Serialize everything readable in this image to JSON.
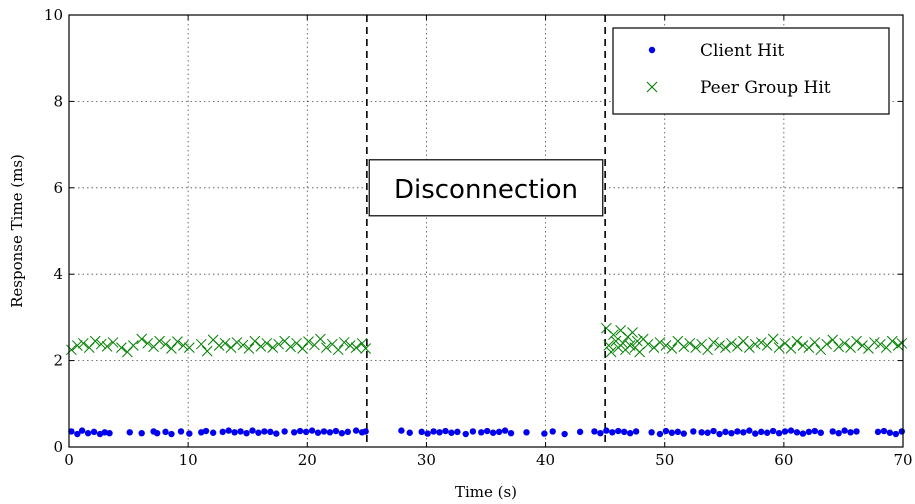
{
  "chart_data": {
    "type": "scatter",
    "xlabel": "Time (s)",
    "ylabel": "Response Time (ms)",
    "xlim": [
      0,
      70
    ],
    "ylim": [
      0,
      10
    ],
    "xticks": [
      0,
      10,
      20,
      30,
      40,
      50,
      60,
      70
    ],
    "yticks": [
      0,
      2,
      4,
      6,
      8,
      10
    ],
    "grid": true,
    "legend_position": "top-right",
    "vertical_lines": [
      25,
      45
    ],
    "annotation": {
      "text": "Disconnection",
      "x": 35,
      "y": 6
    },
    "series": [
      {
        "name": "Client Hit",
        "marker": "dot",
        "color": "#0000ee",
        "x": [
          0.2,
          0.7,
          1.1,
          1.6,
          2.1,
          2.6,
          3.0,
          3.4,
          5.1,
          6.1,
          7.1,
          7.4,
          8.1,
          8.6,
          9.4,
          10.1,
          11.1,
          11.5,
          12.1,
          12.9,
          13.4,
          13.9,
          14.4,
          14.9,
          15.4,
          15.9,
          16.4,
          16.9,
          17.4,
          18.1,
          18.9,
          19.4,
          19.9,
          20.4,
          20.9,
          21.4,
          21.9,
          22.4,
          22.9,
          23.4,
          24.1,
          24.6,
          24.9,
          27.9,
          28.6,
          29.6,
          30.1,
          30.6,
          31.1,
          31.6,
          32.1,
          32.6,
          33.3,
          33.9,
          34.6,
          35.1,
          35.6,
          36.1,
          36.6,
          37.1,
          38.4,
          39.9,
          40.6,
          41.6,
          42.9,
          44.1,
          44.6,
          45.1,
          45.6,
          46.1,
          46.6,
          47.1,
          47.6,
          48.9,
          49.6,
          50.1,
          50.6,
          51.1,
          51.6,
          52.4,
          53.1,
          53.6,
          54.1,
          54.6,
          55.1,
          55.6,
          56.1,
          56.6,
          57.1,
          57.6,
          58.1,
          58.6,
          59.1,
          59.6,
          60.1,
          60.6,
          61.1,
          61.6,
          62.1,
          62.6,
          63.1,
          64.1,
          64.6,
          65.1,
          65.6,
          66.1,
          67.9,
          68.4,
          68.9,
          69.4,
          69.9
        ],
        "y": [
          0.36,
          0.3,
          0.38,
          0.32,
          0.35,
          0.3,
          0.34,
          0.32,
          0.34,
          0.32,
          0.36,
          0.32,
          0.35,
          0.3,
          0.36,
          0.31,
          0.34,
          0.37,
          0.33,
          0.35,
          0.38,
          0.34,
          0.36,
          0.32,
          0.38,
          0.33,
          0.36,
          0.35,
          0.31,
          0.36,
          0.34,
          0.37,
          0.35,
          0.38,
          0.33,
          0.36,
          0.34,
          0.37,
          0.32,
          0.35,
          0.38,
          0.34,
          0.36,
          0.38,
          0.33,
          0.35,
          0.31,
          0.36,
          0.34,
          0.37,
          0.33,
          0.35,
          0.3,
          0.36,
          0.34,
          0.37,
          0.33,
          0.35,
          0.38,
          0.32,
          0.34,
          0.31,
          0.36,
          0.3,
          0.35,
          0.36,
          0.32,
          0.38,
          0.34,
          0.37,
          0.35,
          0.32,
          0.36,
          0.34,
          0.3,
          0.37,
          0.33,
          0.35,
          0.31,
          0.36,
          0.34,
          0.33,
          0.37,
          0.3,
          0.35,
          0.32,
          0.36,
          0.34,
          0.38,
          0.31,
          0.35,
          0.33,
          0.37,
          0.32,
          0.36,
          0.38,
          0.34,
          0.31,
          0.35,
          0.37,
          0.33,
          0.36,
          0.32,
          0.38,
          0.34,
          0.36,
          0.35,
          0.37,
          0.33,
          0.3,
          0.36
        ]
      },
      {
        "name": "Peer Group Hit",
        "marker": "x",
        "color": "#008000",
        "x": [
          0.2,
          0.7,
          1.2,
          1.7,
          2.2,
          2.7,
          3.2,
          3.7,
          4.4,
          4.9,
          5.4,
          6.1,
          6.6,
          7.1,
          7.6,
          8.1,
          8.6,
          9.1,
          9.6,
          10.1,
          11.1,
          11.6,
          12.1,
          12.6,
          13.1,
          13.6,
          14.1,
          14.6,
          15.1,
          15.6,
          16.1,
          16.6,
          17.1,
          17.6,
          18.1,
          18.6,
          19.1,
          19.6,
          20.1,
          20.6,
          21.1,
          21.6,
          22.1,
          22.6,
          23.1,
          23.6,
          24.1,
          24.6,
          24.9,
          45.1,
          45.3,
          45.5,
          45.7,
          45.9,
          46.1,
          46.3,
          46.5,
          46.7,
          46.9,
          47.1,
          47.3,
          47.5,
          47.7,
          47.9,
          48.2,
          48.6,
          49.1,
          49.6,
          50.1,
          50.6,
          51.1,
          51.6,
          52.1,
          52.6,
          53.1,
          53.6,
          54.1,
          54.6,
          55.1,
          55.6,
          56.1,
          56.6,
          57.1,
          57.6,
          58.1,
          58.6,
          59.1,
          59.6,
          60.1,
          60.6,
          61.1,
          61.6,
          62.1,
          62.6,
          63.1,
          63.6,
          64.1,
          64.6,
          65.1,
          65.6,
          66.1,
          66.6,
          67.1,
          67.6,
          68.1,
          68.6,
          69.1,
          69.6,
          69.9
        ],
        "y": [
          2.25,
          2.35,
          2.4,
          2.3,
          2.45,
          2.38,
          2.33,
          2.42,
          2.3,
          2.2,
          2.35,
          2.5,
          2.4,
          2.32,
          2.45,
          2.38,
          2.28,
          2.44,
          2.35,
          2.3,
          2.38,
          2.22,
          2.48,
          2.35,
          2.4,
          2.3,
          2.42,
          2.36,
          2.28,
          2.45,
          2.33,
          2.4,
          2.3,
          2.38,
          2.45,
          2.32,
          2.4,
          2.28,
          2.44,
          2.36,
          2.5,
          2.3,
          2.38,
          2.25,
          2.42,
          2.35,
          2.3,
          2.4,
          2.28,
          2.75,
          2.35,
          2.2,
          2.6,
          2.45,
          2.3,
          2.7,
          2.4,
          2.25,
          2.55,
          2.35,
          2.65,
          2.3,
          2.45,
          2.2,
          2.5,
          2.38,
          2.3,
          2.42,
          2.35,
          2.28,
          2.45,
          2.32,
          2.4,
          2.3,
          2.38,
          2.25,
          2.42,
          2.35,
          2.3,
          2.4,
          2.33,
          2.45,
          2.3,
          2.38,
          2.42,
          2.35,
          2.5,
          2.3,
          2.4,
          2.28,
          2.45,
          2.35,
          2.3,
          2.42,
          2.25,
          2.38,
          2.48,
          2.32,
          2.4,
          2.3,
          2.45,
          2.35,
          2.28,
          2.42,
          2.38,
          2.3,
          2.45,
          2.35,
          2.4
        ]
      }
    ]
  }
}
